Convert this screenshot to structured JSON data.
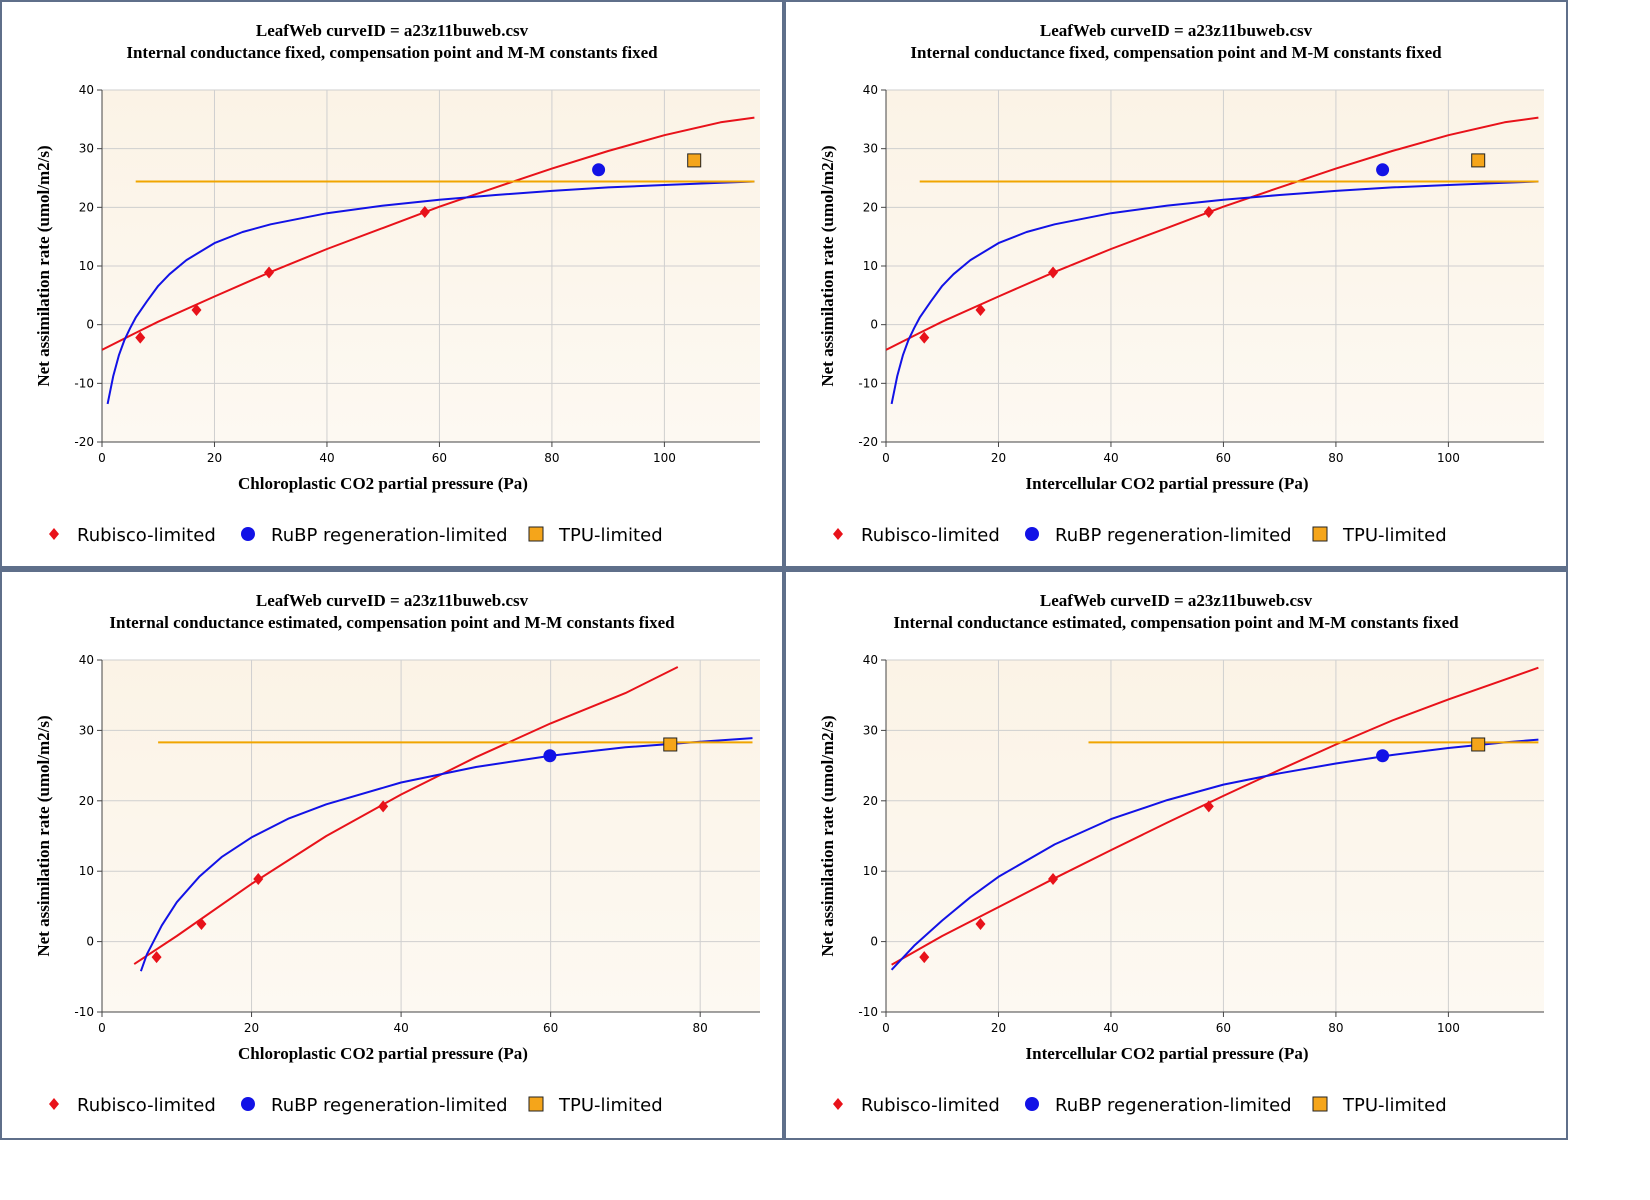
{
  "colors": {
    "rubisco": "#e8121a",
    "rubp": "#1212e6",
    "tpu": "#f0a500",
    "tpu_marker": "#f5a51a",
    "plot_bg_top": "#fbf3e6",
    "plot_bg_bottom": "#fdf9f2",
    "grid": "#cfcfcf",
    "frame": "#5f6f8a"
  },
  "legend": {
    "rubisco": "Rubisco-limited",
    "rubp": "RuBP regeneration-limited",
    "tpu": "TPU-limited"
  },
  "chart_data": [
    {
      "type": "scatter",
      "title": "LeafWeb curveID = a23z11buweb.csv",
      "subtitle": "Internal conductance fixed, compensation point and M-M constants fixed",
      "xlabel": "Chloroplastic CO2 partial pressure (Pa)",
      "ylabel": "Net assimilation rate (umol/m2/s)",
      "xlim": [
        0,
        117
      ],
      "ylim": [
        -20,
        40
      ],
      "xticks": [
        "0",
        "20",
        "40",
        "60",
        "80",
        "100"
      ],
      "yticks": [
        "-20",
        "-10",
        "0",
        "10",
        "20",
        "30",
        "40"
      ],
      "xtick_values": [
        0,
        20,
        40,
        60,
        80,
        100
      ],
      "ytick_values": [
        -20,
        -10,
        0,
        10,
        20,
        30,
        40
      ],
      "grid": true,
      "legend_position": "bottom",
      "series": [
        {
          "name": "Rubisco-limited",
          "kind": "points",
          "marker": "diamond",
          "x": [
            6.8,
            16.8,
            29.7,
            57.4
          ],
          "y": [
            -2.2,
            2.5,
            8.9,
            19.2
          ]
        },
        {
          "name": "RuBP regeneration-limited",
          "kind": "points",
          "marker": "circle",
          "x": [
            88.3
          ],
          "y": [
            26.4
          ]
        },
        {
          "name": "TPU-limited",
          "kind": "points",
          "marker": "square",
          "x": [
            105.3
          ],
          "y": [
            28.0
          ]
        },
        {
          "kind": "curve",
          "color_key": "rubisco",
          "x": [
            0,
            6,
            10,
            20,
            30,
            40,
            50,
            60,
            70,
            80,
            90,
            100,
            110,
            116
          ],
          "y": [
            -4.3,
            -1.4,
            0.5,
            4.8,
            9.0,
            12.9,
            16.5,
            20.1,
            23.4,
            26.6,
            29.6,
            32.3,
            34.5,
            35.3
          ]
        },
        {
          "kind": "curve",
          "color_key": "rubp",
          "x": [
            1,
            2,
            3,
            4,
            5,
            6,
            8,
            10,
            12,
            15,
            20,
            25,
            30,
            40,
            50,
            60,
            70,
            80,
            90,
            100,
            110,
            116
          ],
          "y": [
            -13.5,
            -8.8,
            -5.2,
            -2.6,
            -0.6,
            1.2,
            4.0,
            6.6,
            8.6,
            11.0,
            13.9,
            15.8,
            17.1,
            19.0,
            20.3,
            21.3,
            22.1,
            22.8,
            23.4,
            23.8,
            24.2,
            24.4
          ]
        },
        {
          "kind": "curve",
          "color_key": "tpu",
          "x": [
            6,
            116
          ],
          "y": [
            24.4,
            24.4
          ]
        }
      ]
    },
    {
      "type": "scatter",
      "title": "LeafWeb curveID = a23z11buweb.csv",
      "subtitle": "Internal conductance fixed, compensation point and M-M constants fixed",
      "xlabel": "Intercellular CO2 partial pressure (Pa)",
      "ylabel": "Net assimilation rate (umol/m2/s)",
      "xlim": [
        0,
        117
      ],
      "ylim": [
        -20,
        40
      ],
      "xticks": [
        "0",
        "20",
        "40",
        "60",
        "80",
        "100"
      ],
      "yticks": [
        "-20",
        "-10",
        "0",
        "10",
        "20",
        "30",
        "40"
      ],
      "xtick_values": [
        0,
        20,
        40,
        60,
        80,
        100
      ],
      "ytick_values": [
        -20,
        -10,
        0,
        10,
        20,
        30,
        40
      ],
      "grid": true,
      "legend_position": "bottom",
      "series": [
        {
          "name": "Rubisco-limited",
          "kind": "points",
          "marker": "diamond",
          "x": [
            6.8,
            16.8,
            29.7,
            57.4
          ],
          "y": [
            -2.2,
            2.5,
            8.9,
            19.2
          ]
        },
        {
          "name": "RuBP regeneration-limited",
          "kind": "points",
          "marker": "circle",
          "x": [
            88.3
          ],
          "y": [
            26.4
          ]
        },
        {
          "name": "TPU-limited",
          "kind": "points",
          "marker": "square",
          "x": [
            105.3
          ],
          "y": [
            28.0
          ]
        },
        {
          "kind": "curve",
          "color_key": "rubisco",
          "x": [
            0,
            6,
            10,
            20,
            30,
            40,
            50,
            60,
            70,
            80,
            90,
            100,
            110,
            116
          ],
          "y": [
            -4.3,
            -1.4,
            0.5,
            4.8,
            9.0,
            12.9,
            16.5,
            20.1,
            23.4,
            26.6,
            29.6,
            32.3,
            34.5,
            35.3
          ]
        },
        {
          "kind": "curve",
          "color_key": "rubp",
          "x": [
            1,
            2,
            3,
            4,
            5,
            6,
            8,
            10,
            12,
            15,
            20,
            25,
            30,
            40,
            50,
            60,
            70,
            80,
            90,
            100,
            110,
            116
          ],
          "y": [
            -13.5,
            -8.8,
            -5.2,
            -2.6,
            -0.6,
            1.2,
            4.0,
            6.6,
            8.6,
            11.0,
            13.9,
            15.8,
            17.1,
            19.0,
            20.3,
            21.3,
            22.1,
            22.8,
            23.4,
            23.8,
            24.2,
            24.4
          ]
        },
        {
          "kind": "curve",
          "color_key": "tpu",
          "x": [
            6,
            116
          ],
          "y": [
            24.4,
            24.4
          ]
        }
      ]
    },
    {
      "type": "scatter",
      "title": "LeafWeb curveID = a23z11buweb.csv",
      "subtitle": "Internal conductance estimated, compensation point and M-M constants fixed",
      "xlabel": "Chloroplastic CO2 partial pressure (Pa)",
      "ylabel": "Net assimilation rate (umol/m2/s)",
      "xlim": [
        0,
        88
      ],
      "ylim": [
        -10,
        40
      ],
      "xticks": [
        "0",
        "20",
        "40",
        "60",
        "80"
      ],
      "yticks": [
        "-10",
        "0",
        "10",
        "20",
        "30",
        "40"
      ],
      "xtick_values": [
        0,
        20,
        40,
        60,
        80
      ],
      "ytick_values": [
        -10,
        0,
        10,
        20,
        30,
        40
      ],
      "grid": true,
      "legend_position": "bottom",
      "series": [
        {
          "name": "Rubisco-limited",
          "kind": "points",
          "marker": "diamond",
          "x": [
            7.3,
            13.3,
            20.9,
            37.6
          ],
          "y": [
            -2.2,
            2.5,
            8.9,
            19.2
          ]
        },
        {
          "name": "RuBP regeneration-limited",
          "kind": "points",
          "marker": "circle",
          "x": [
            59.9
          ],
          "y": [
            26.4
          ]
        },
        {
          "name": "TPU-limited",
          "kind": "points",
          "marker": "square",
          "x": [
            76.0
          ],
          "y": [
            28.0
          ]
        },
        {
          "kind": "curve",
          "color_key": "rubisco",
          "x": [
            4.3,
            10,
            20,
            30,
            40,
            50,
            60,
            70,
            77
          ],
          "y": [
            -3.2,
            0.8,
            8.2,
            15.0,
            20.9,
            26.2,
            31.0,
            35.3,
            39.0
          ]
        },
        {
          "kind": "curve",
          "color_key": "rubp",
          "x": [
            5.2,
            6,
            8,
            10,
            13,
            16,
            20,
            25,
            30,
            40,
            50,
            60,
            70,
            80,
            87
          ],
          "y": [
            -4.2,
            -1.8,
            2.3,
            5.6,
            9.2,
            12.0,
            14.8,
            17.5,
            19.5,
            22.6,
            24.8,
            26.4,
            27.6,
            28.4,
            28.9
          ]
        },
        {
          "kind": "curve",
          "color_key": "tpu",
          "x": [
            7.5,
            87
          ],
          "y": [
            28.3,
            28.3
          ]
        }
      ]
    },
    {
      "type": "scatter",
      "title": "LeafWeb curveID = a23z11buweb.csv",
      "subtitle": "Internal conductance estimated, compensation point and M-M constants fixed",
      "xlabel": "Intercellular CO2 partial pressure (Pa)",
      "ylabel": "Net assimilation rate (umol/m2/s)",
      "xlim": [
        0,
        117
      ],
      "ylim": [
        -10,
        40
      ],
      "xticks": [
        "0",
        "20",
        "40",
        "60",
        "80",
        "100"
      ],
      "yticks": [
        "-10",
        "0",
        "10",
        "20",
        "30",
        "40"
      ],
      "xtick_values": [
        0,
        20,
        40,
        60,
        80,
        100
      ],
      "ytick_values": [
        -10,
        0,
        10,
        20,
        30,
        40
      ],
      "grid": true,
      "legend_position": "bottom",
      "series": [
        {
          "name": "Rubisco-limited",
          "kind": "points",
          "marker": "diamond",
          "x": [
            6.8,
            16.8,
            29.7,
            57.4
          ],
          "y": [
            -2.2,
            2.5,
            8.9,
            19.2
          ]
        },
        {
          "name": "RuBP regeneration-limited",
          "kind": "points",
          "marker": "circle",
          "x": [
            88.3
          ],
          "y": [
            26.4
          ]
        },
        {
          "name": "TPU-limited",
          "kind": "points",
          "marker": "square",
          "x": [
            105.3
          ],
          "y": [
            28.0
          ]
        },
        {
          "kind": "curve",
          "color_key": "rubisco",
          "x": [
            1,
            10,
            20,
            30,
            40,
            50,
            60,
            70,
            80,
            90,
            100,
            110,
            116
          ],
          "y": [
            -3.3,
            0.8,
            4.9,
            9.0,
            13.0,
            16.9,
            20.7,
            24.4,
            28.0,
            31.4,
            34.4,
            37.2,
            38.9
          ]
        },
        {
          "kind": "curve",
          "color_key": "rubp",
          "x": [
            1,
            5,
            10,
            15,
            20,
            30,
            40,
            50,
            60,
            70,
            80,
            90,
            100,
            110,
            116
          ],
          "y": [
            -4.0,
            -0.6,
            3.0,
            6.3,
            9.2,
            13.8,
            17.4,
            20.1,
            22.3,
            23.9,
            25.3,
            26.5,
            27.5,
            28.3,
            28.7
          ]
        },
        {
          "kind": "curve",
          "color_key": "tpu",
          "x": [
            36,
            116
          ],
          "y": [
            28.3,
            28.3
          ]
        }
      ]
    }
  ]
}
